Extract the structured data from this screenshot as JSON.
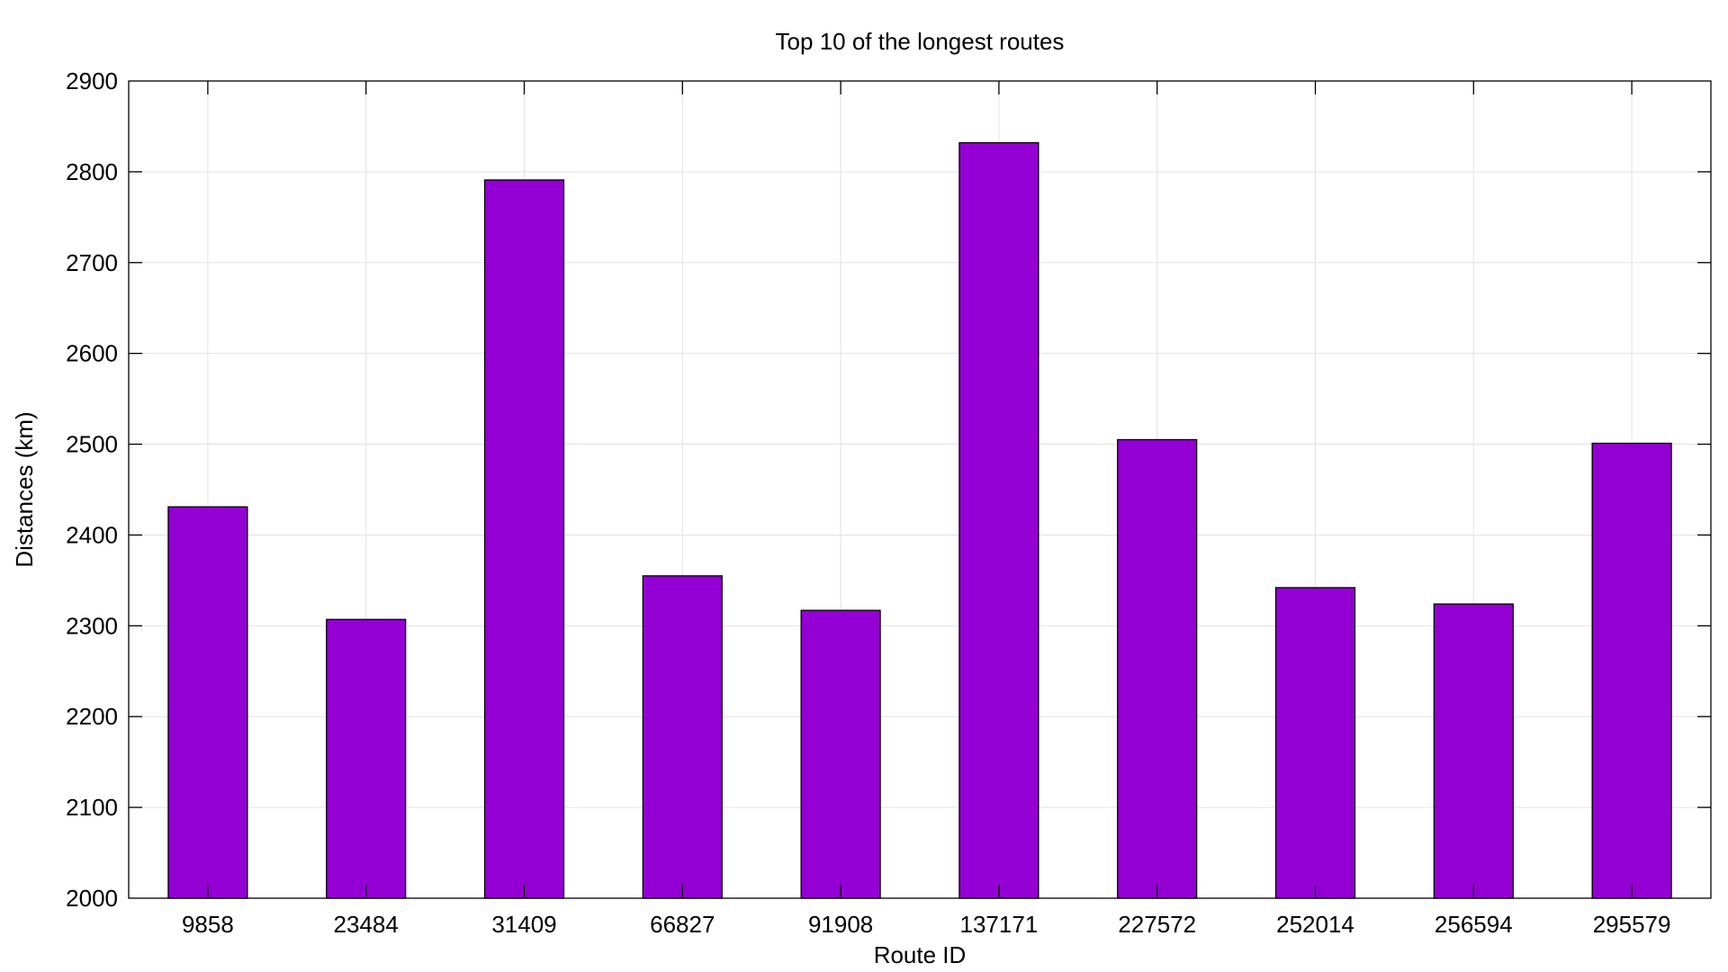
{
  "chart_data": {
    "type": "bar",
    "title": "Top 10 of the longest routes",
    "xlabel": "Route ID",
    "ylabel": "Distances (km)",
    "categories": [
      "9858",
      "23484",
      "31409",
      "66827",
      "91908",
      "137171",
      "227572",
      "252014",
      "256594",
      "295579"
    ],
    "values": [
      2431,
      2307,
      2791,
      2355,
      2317,
      2832,
      2505,
      2342,
      2324,
      2501
    ],
    "ylim": [
      2000,
      2900
    ],
    "yticks": [
      2000,
      2100,
      2200,
      2300,
      2400,
      2500,
      2600,
      2700,
      2800,
      2900
    ],
    "grid": true,
    "legend": "none",
    "colors": {
      "bar": "#9400d3",
      "bar_border": "#000000",
      "grid": "#e2e2e2",
      "axis": "#000000"
    }
  }
}
